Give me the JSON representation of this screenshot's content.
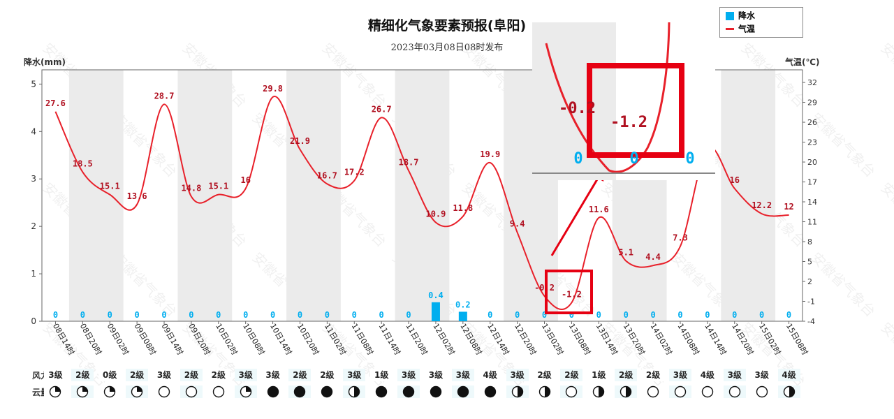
{
  "title": "精细化气象要素预报(阜阳)",
  "subtitle": "2023年03月08日08时发布",
  "legend": {
    "precip_label": "降水",
    "temp_label": "气温"
  },
  "axes": {
    "left_title": "降水(mm)",
    "right_title": "气温(℃)"
  },
  "rows": {
    "wind_label": "风力:",
    "cloud_label": "云量:"
  },
  "colors": {
    "temp_line": "#e8202a",
    "precip_bar": "#00aeef",
    "band": "#ebebeb",
    "annotation": "#e60012"
  },
  "watermark": "安徽省气象台",
  "chart_data": {
    "type": "bar+line",
    "x": [
      "08日14时",
      "08日20时",
      "09日02时",
      "09日08时",
      "09日14时",
      "09日20时",
      "10日02时",
      "10日08时",
      "10日14时",
      "10日20时",
      "11日02时",
      "11日08时",
      "11日14时",
      "11日20时",
      "12日02时",
      "12日08时",
      "12日14时",
      "12日20时",
      "13日02时",
      "13日08时",
      "13日14时",
      "13日20时",
      "14日02时",
      "14日08时",
      "14日14时",
      "14日20时",
      "15日02时",
      "15日08时"
    ],
    "series": [
      {
        "name": "降水",
        "axis": "left",
        "type": "bar",
        "values": [
          0,
          0,
          0,
          0,
          0,
          0,
          0,
          0,
          0,
          0,
          0,
          0,
          0,
          0,
          0.4,
          0.2,
          0,
          0,
          0,
          0,
          0,
          0,
          0,
          0,
          0,
          0,
          0,
          0
        ],
        "labels": [
          "0",
          "0",
          "0",
          "0",
          "0",
          "0",
          "0",
          "0",
          "0",
          "0",
          "0",
          "0",
          "0",
          "0",
          "0.4",
          "0.2",
          "0",
          "0",
          "0",
          "0",
          "0",
          "0",
          "0",
          "0",
          "0",
          "0",
          "0",
          "0"
        ]
      },
      {
        "name": "气温",
        "axis": "right",
        "type": "line",
        "values": [
          27.6,
          18.5,
          15.1,
          13.6,
          28.7,
          14.8,
          15.1,
          16,
          29.8,
          21.9,
          16.7,
          17.2,
          26.7,
          18.7,
          10.9,
          11.8,
          19.9,
          9.4,
          -0.2,
          -1.2,
          11.6,
          5.1,
          4.4,
          7.3,
          22,
          16,
          12.2,
          12
        ],
        "labels": [
          "27.6",
          "18.5",
          "15.1",
          "13.6",
          "28.7",
          "14.8",
          "15.1",
          "16",
          "29.8",
          "21.9",
          "16.7",
          "17.2",
          "26.7",
          "18.7",
          "10.9",
          "11.8",
          "19.9",
          "9.4",
          "-0.2",
          "-1.2",
          "11.6",
          "5.1",
          "4.4",
          "7.3",
          "",
          "16",
          "12.2",
          "12"
        ]
      }
    ],
    "left_axis": {
      "ticks": [
        "0",
        "1",
        "2",
        "3",
        "4",
        "5"
      ],
      "range": [
        0,
        5.3
      ]
    },
    "right_axis": {
      "ticks": [
        "-4",
        "-1",
        "2",
        "5",
        "8",
        "11",
        "14",
        "17",
        "20",
        "23",
        "26",
        "29",
        "32"
      ],
      "range": [
        -4,
        33.9
      ]
    },
    "wind": [
      "3级",
      "2级",
      "0级",
      "2级",
      "3级",
      "2级",
      "2级",
      "3级",
      "3级",
      "2级",
      "2级",
      "3级",
      "1级",
      "3级",
      "3级",
      "3级",
      "4级",
      "3级",
      "2级",
      "2级",
      "1级",
      "2级",
      "2级",
      "3级",
      "4级",
      "3级",
      "3级",
      "4级"
    ],
    "cloud": [
      0.25,
      0.25,
      0.25,
      0.25,
      0,
      0,
      0,
      0.25,
      1,
      1,
      1,
      0.5,
      1,
      1,
      1,
      1,
      1,
      0.5,
      0.5,
      0,
      0.5,
      0.5,
      0,
      0,
      0,
      0,
      0,
      0.5
    ],
    "inset": {
      "labels": [
        "-0.2",
        "-1.2",
        "0",
        "0",
        "0"
      ]
    }
  }
}
